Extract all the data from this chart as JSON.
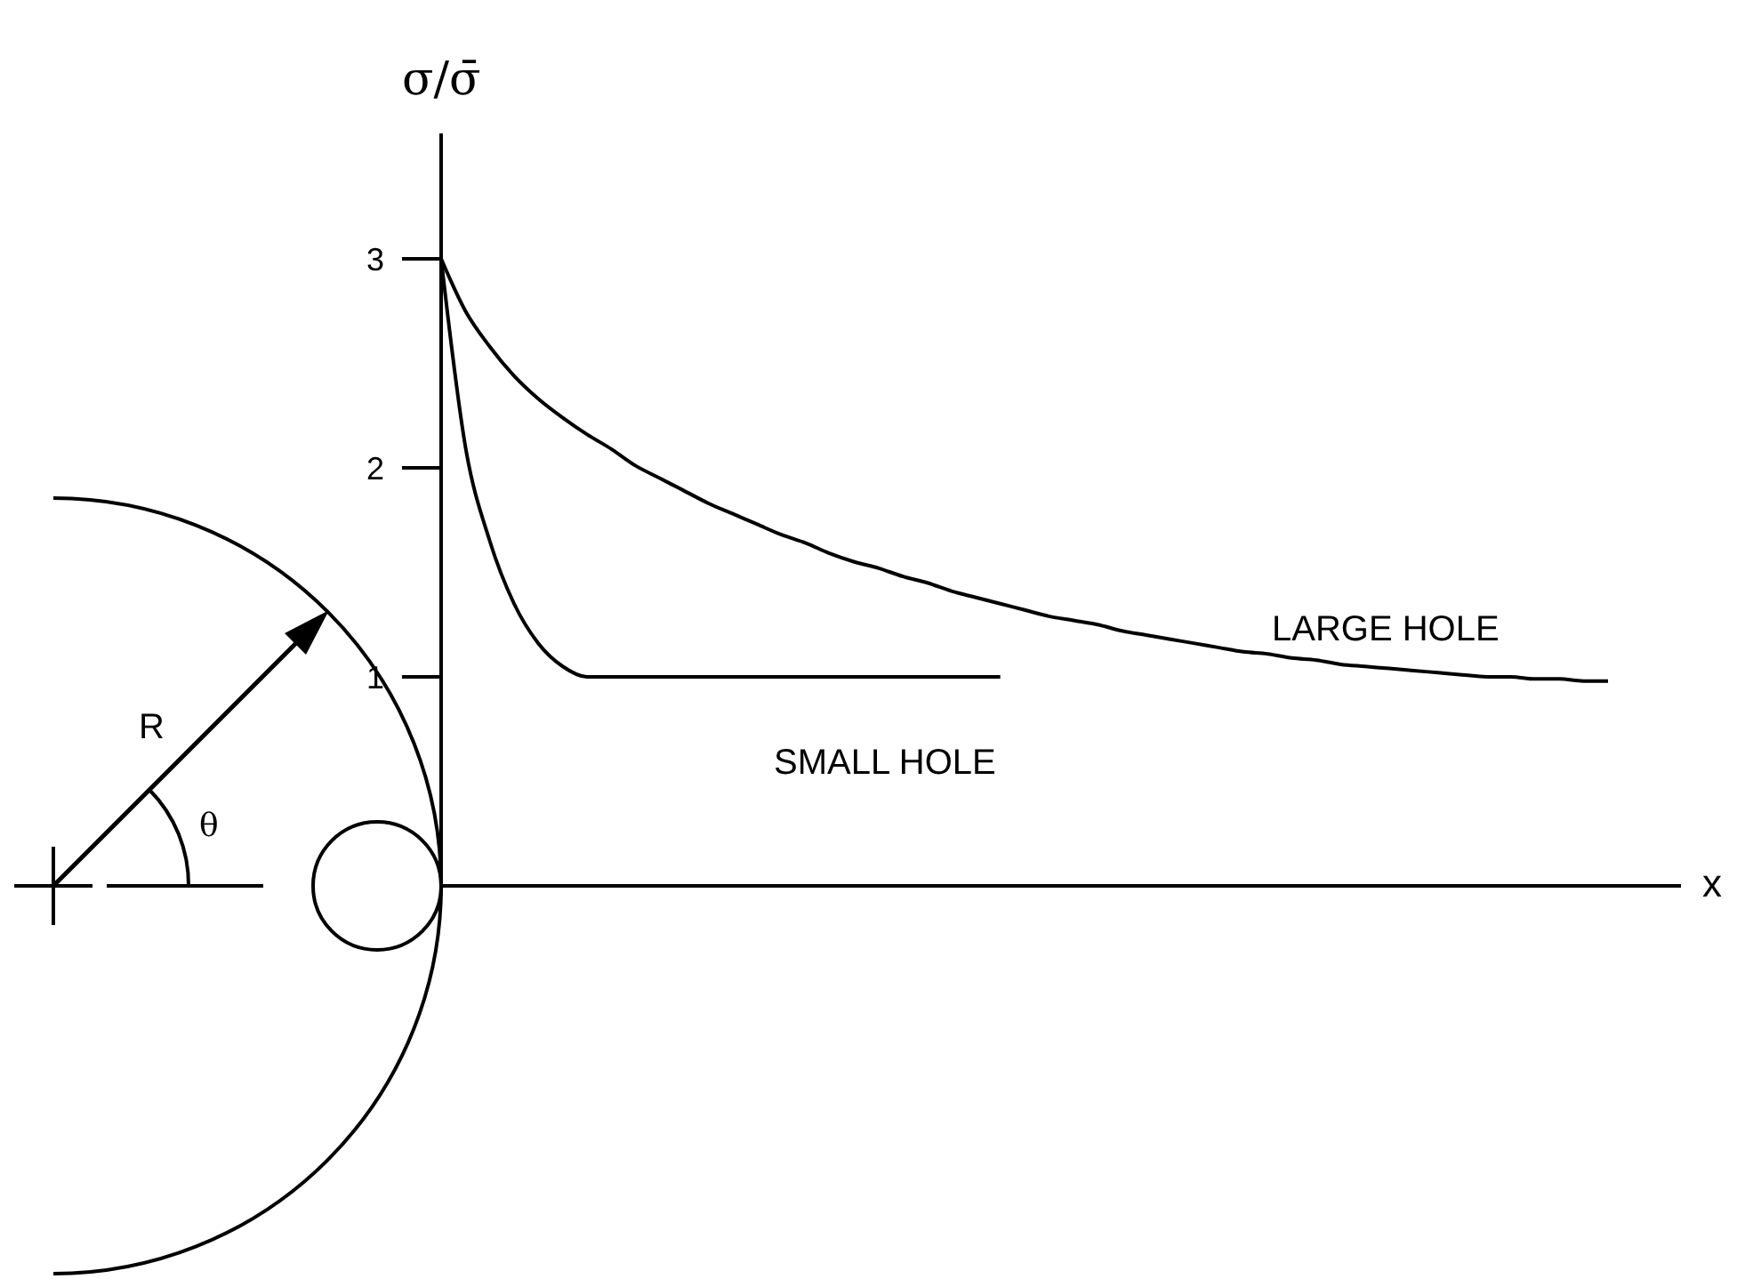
{
  "chart_data": {
    "type": "line",
    "xlabel": "x",
    "ylabel": "σ/σ̄",
    "categories": [
      null,
      null,
      null,
      null,
      null,
      null,
      null,
      null,
      null,
      null,
      null,
      null,
      null,
      null,
      null,
      null,
      null,
      null,
      null,
      null,
      null,
      null,
      null,
      null,
      null,
      null,
      null,
      null,
      null,
      null,
      null,
      null,
      null,
      null,
      null,
      null,
      null,
      null,
      null,
      null,
      null,
      null,
      null,
      null,
      null,
      null,
      null,
      null,
      null,
      null,
      null,
      null
    ],
    "series": [
      {
        "name": "LARGE HOLE",
        "color": "#000000",
        "values": [
          3.0,
          2.75,
          2.58,
          2.44,
          2.33,
          2.24,
          2.16,
          2.09,
          2.01,
          1.95,
          1.89,
          1.83,
          1.78,
          1.73,
          1.68,
          1.64,
          1.59,
          1.55,
          1.52,
          1.48,
          1.45,
          1.41,
          1.38,
          1.35,
          1.32,
          1.29,
          1.27,
          1.25,
          1.22,
          1.2,
          1.18,
          1.16,
          1.14,
          1.12,
          1.11,
          1.09,
          1.08,
          1.06,
          1.05,
          1.04,
          1.03,
          1.02,
          1.01,
          1.0,
          1.0,
          0.99,
          0.99,
          0.98,
          0.98,
          null,
          null,
          null
        ]
      },
      {
        "name": "SMALL HOLE",
        "color": "#000000",
        "values": [
          3.0,
          2.1,
          1.65,
          1.35,
          1.16,
          1.05,
          1.0,
          1.0,
          1.0,
          1.0,
          1.0,
          1.0,
          1.0,
          1.0,
          1.0,
          1.0,
          1.0,
          1.0,
          1.0,
          1.0,
          1.0,
          1.0,
          1.0,
          1.0,
          null,
          null,
          null,
          null,
          null,
          null,
          null,
          null,
          null,
          null,
          null,
          null,
          null,
          null,
          null,
          null,
          null,
          null,
          null,
          null,
          null,
          null,
          null,
          null,
          null,
          null,
          null,
          null
        ]
      }
    ],
    "ylim": [
      0,
      3.6
    ],
    "yticks": [
      1,
      2,
      3
    ],
    "grid": false,
    "marker": "none",
    "line_style": "solid",
    "annotations": [
      "R",
      "θ"
    ]
  }
}
